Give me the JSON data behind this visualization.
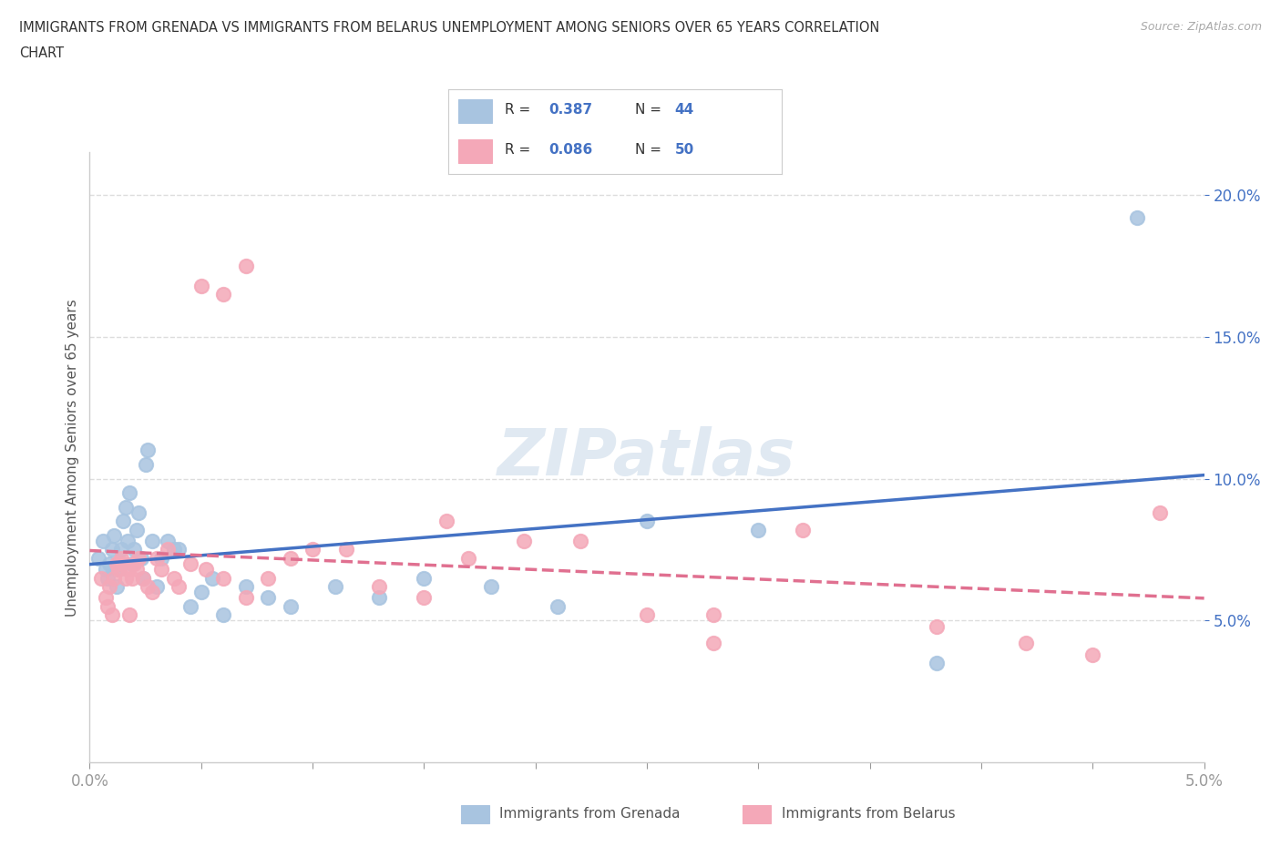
{
  "title_line1": "IMMIGRANTS FROM GRENADA VS IMMIGRANTS FROM BELARUS UNEMPLOYMENT AMONG SENIORS OVER 65 YEARS CORRELATION",
  "title_line2": "CHART",
  "source": "Source: ZipAtlas.com",
  "ylabel": "Unemployment Among Seniors over 65 years",
  "xlim": [
    0.0,
    5.0
  ],
  "ylim": [
    0.0,
    21.5
  ],
  "grenada_R": 0.387,
  "grenada_N": 44,
  "belarus_R": 0.086,
  "belarus_N": 50,
  "grenada_color": "#a8c4e0",
  "belarus_color": "#f4a8b8",
  "grenada_line_color": "#4472c4",
  "belarus_line_color": "#e07090",
  "legend_grenada": "Immigrants from Grenada",
  "legend_belarus": "Immigrants from Belarus",
  "grenada_scatter_x": [
    0.04,
    0.06,
    0.07,
    0.08,
    0.09,
    0.1,
    0.11,
    0.12,
    0.13,
    0.14,
    0.15,
    0.16,
    0.17,
    0.18,
    0.19,
    0.2,
    0.21,
    0.22,
    0.23,
    0.24,
    0.25,
    0.26,
    0.28,
    0.3,
    0.32,
    0.35,
    0.38,
    0.4,
    0.45,
    0.5,
    0.55,
    0.6,
    0.7,
    0.8,
    0.9,
    1.1,
    1.3,
    1.5,
    1.8,
    2.1,
    2.5,
    3.0,
    3.8,
    4.7
  ],
  "grenada_scatter_y": [
    7.2,
    7.8,
    6.8,
    6.5,
    7.0,
    7.5,
    8.0,
    6.2,
    6.8,
    7.5,
    8.5,
    9.0,
    7.8,
    9.5,
    7.0,
    7.5,
    8.2,
    8.8,
    7.2,
    6.5,
    10.5,
    11.0,
    7.8,
    6.2,
    7.2,
    7.8,
    7.5,
    7.5,
    5.5,
    6.0,
    6.5,
    5.2,
    6.2,
    5.8,
    5.5,
    6.2,
    5.8,
    6.5,
    6.2,
    5.5,
    8.5,
    8.2,
    3.5,
    19.2
  ],
  "belarus_scatter_x": [
    0.05,
    0.07,
    0.08,
    0.09,
    0.1,
    0.11,
    0.12,
    0.13,
    0.14,
    0.15,
    0.16,
    0.17,
    0.18,
    0.19,
    0.2,
    0.21,
    0.22,
    0.24,
    0.26,
    0.28,
    0.3,
    0.32,
    0.35,
    0.38,
    0.4,
    0.45,
    0.52,
    0.6,
    0.7,
    0.8,
    0.9,
    1.0,
    1.15,
    1.3,
    1.5,
    1.7,
    1.95,
    2.2,
    2.5,
    2.8,
    3.2,
    3.8,
    4.2,
    4.5,
    4.8,
    0.5,
    0.6,
    0.7,
    2.8,
    1.6
  ],
  "belarus_scatter_y": [
    6.5,
    5.8,
    5.5,
    6.2,
    5.2,
    6.5,
    7.0,
    6.8,
    7.2,
    7.0,
    6.5,
    6.8,
    5.2,
    6.5,
    7.0,
    6.8,
    7.2,
    6.5,
    6.2,
    6.0,
    7.2,
    6.8,
    7.5,
    6.5,
    6.2,
    7.0,
    6.8,
    6.5,
    5.8,
    6.5,
    7.2,
    7.5,
    7.5,
    6.2,
    5.8,
    7.2,
    7.8,
    7.8,
    5.2,
    5.2,
    8.2,
    4.8,
    4.2,
    3.8,
    8.8,
    16.8,
    16.5,
    17.5,
    4.2,
    8.5
  ]
}
